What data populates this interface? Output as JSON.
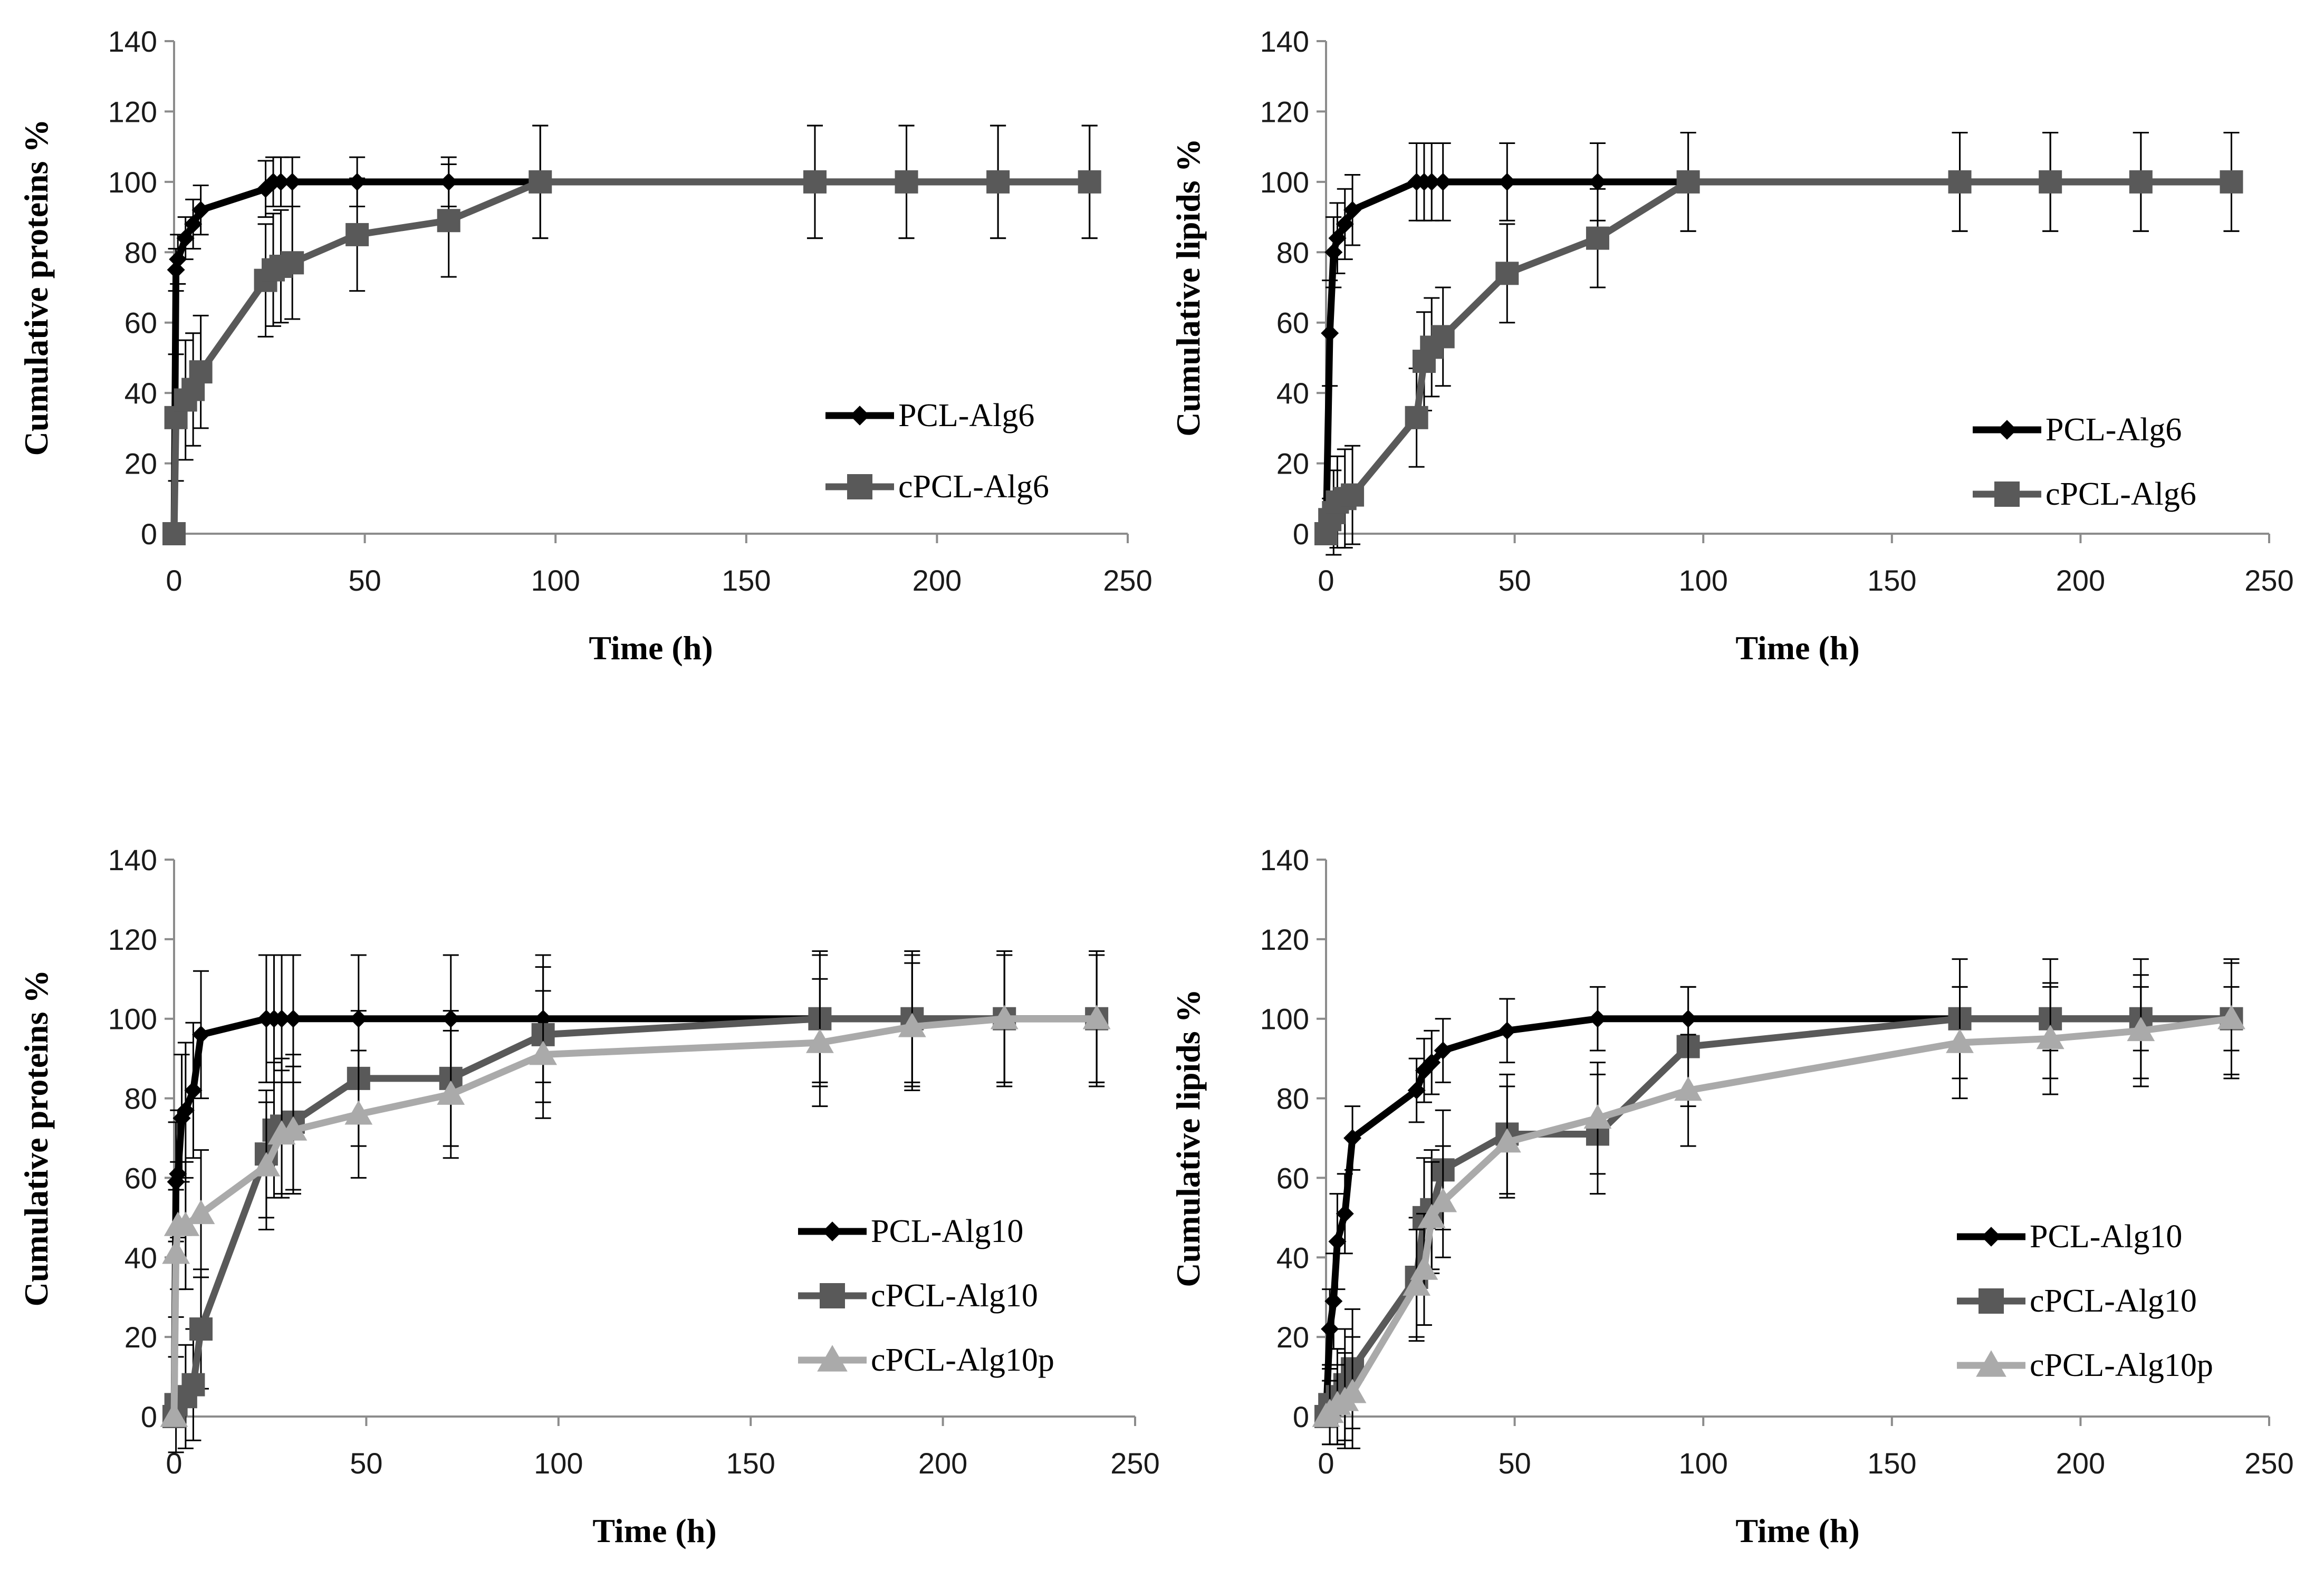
{
  "chart_data": [
    {
      "type": "line",
      "xlabel": "Time (h)",
      "ylabel": "Cumulative proteins %",
      "xlim": [
        0,
        250
      ],
      "ylim": [
        0,
        140
      ],
      "xticks": [
        0,
        50,
        100,
        150,
        200,
        250
      ],
      "yticks": [
        0,
        20,
        40,
        60,
        80,
        100,
        120,
        140
      ],
      "series": [
        {
          "name": "PCL-Alg6",
          "color": "#000000",
          "marker": "diamond",
          "x": [
            0,
            0.5,
            1,
            3,
            5,
            7,
            24,
            26,
            28,
            31,
            48,
            72,
            96,
            168,
            192,
            216,
            240
          ],
          "y": [
            0,
            75,
            78,
            84,
            88,
            92,
            98,
            100,
            100,
            100,
            100,
            100,
            100,
            100,
            100,
            100,
            100
          ],
          "err": [
            0,
            6,
            7,
            6,
            7,
            7,
            8,
            7,
            7,
            7,
            7,
            7,
            16,
            16,
            16,
            16,
            16
          ]
        },
        {
          "name": "cPCL-Alg6",
          "color": "#595959",
          "marker": "square",
          "x": [
            0,
            0.5,
            3,
            5,
            7,
            24,
            26,
            28,
            31,
            48,
            72,
            96,
            168,
            192,
            216,
            240
          ],
          "y": [
            0,
            33,
            38,
            41,
            46,
            72,
            75,
            76,
            77,
            85,
            89,
            100,
            100,
            100,
            100,
            100
          ],
          "err": [
            0,
            18,
            17,
            16,
            16,
            16,
            16,
            16,
            16,
            16,
            16,
            16,
            16,
            16,
            16,
            16
          ]
        }
      ]
    },
    {
      "type": "line",
      "xlabel": "Time (h)",
      "ylabel": "Cumulative lipids %",
      "xlim": [
        0,
        250
      ],
      "ylim": [
        0,
        140
      ],
      "xticks": [
        0,
        50,
        100,
        150,
        200,
        250
      ],
      "yticks": [
        0,
        20,
        40,
        60,
        80,
        100,
        120,
        140
      ],
      "series": [
        {
          "name": "PCL-Alg6",
          "color": "#000000",
          "marker": "diamond",
          "x": [
            0,
            1,
            2,
            3,
            5,
            7,
            24,
            26,
            28,
            31,
            48,
            72,
            96,
            168,
            192,
            216,
            240
          ],
          "y": [
            0,
            57,
            80,
            84,
            88,
            92,
            100,
            100,
            100,
            100,
            100,
            100,
            100,
            100,
            100,
            100,
            100
          ],
          "err": [
            0,
            15,
            10,
            10,
            10,
            10,
            11,
            11,
            11,
            11,
            11,
            11,
            14,
            14,
            14,
            14,
            14
          ]
        },
        {
          "name": "cPCL-Alg6",
          "color": "#595959",
          "marker": "square",
          "x": [
            0,
            1,
            2,
            3,
            5,
            7,
            24,
            26,
            28,
            31,
            48,
            72,
            96,
            168,
            192,
            216,
            240
          ],
          "y": [
            0,
            4,
            6,
            9,
            10,
            11,
            33,
            49,
            53,
            56,
            74,
            84,
            100,
            100,
            100,
            100,
            100
          ],
          "err": [
            0,
            6,
            12,
            13,
            14,
            14,
            14,
            14,
            14,
            14,
            14,
            14,
            14,
            14,
            14,
            14,
            14
          ]
        }
      ]
    },
    {
      "type": "line",
      "xlabel": "Time (h)",
      "ylabel": "Cumulative proteins %",
      "xlim": [
        0,
        250
      ],
      "ylim": [
        0,
        140
      ],
      "xticks": [
        0,
        50,
        100,
        150,
        200,
        250
      ],
      "yticks": [
        0,
        20,
        40,
        60,
        80,
        100,
        120,
        140
      ],
      "series": [
        {
          "name": "PCL-Alg10",
          "color": "#000000",
          "marker": "diamond",
          "x": [
            0,
            0.5,
            1,
            2,
            3,
            5,
            7,
            24,
            26,
            28,
            31,
            48,
            72,
            96,
            168,
            192,
            216,
            240
          ],
          "y": [
            0,
            59,
            61,
            75,
            77,
            82,
            96,
            100,
            100,
            100,
            100,
            100,
            100,
            100,
            100,
            100,
            100,
            100
          ],
          "err": [
            0,
            15,
            16,
            16,
            17,
            17,
            16,
            16,
            16,
            16,
            16,
            16,
            16,
            16,
            16,
            16,
            16,
            16
          ]
        },
        {
          "name": "cPCL-Alg10",
          "color": "#595959",
          "marker": "square",
          "x": [
            0,
            0.5,
            3,
            5,
            7,
            24,
            26,
            28,
            31,
            48,
            72,
            96,
            168,
            192,
            216,
            240
          ],
          "y": [
            0,
            3,
            5,
            8,
            22,
            66,
            72,
            73,
            74,
            85,
            85,
            96,
            100,
            100,
            100,
            100
          ],
          "err": [
            0,
            12,
            13,
            14,
            15,
            16,
            17,
            17,
            17,
            17,
            17,
            17,
            17,
            17,
            17,
            17
          ]
        },
        {
          "name": "cPCL-Alg10p",
          "color": "#aaaaaa",
          "marker": "triangle",
          "x": [
            0,
            0.5,
            1,
            3,
            7,
            24,
            28,
            31,
            48,
            72,
            96,
            168,
            192,
            216,
            240
          ],
          "y": [
            0,
            41,
            48,
            48,
            51,
            63,
            71,
            72,
            76,
            81,
            91,
            94,
            98,
            100,
            100
          ],
          "err": [
            0,
            16,
            16,
            16,
            16,
            16,
            16,
            16,
            16,
            16,
            16,
            16,
            16,
            16,
            16
          ]
        }
      ]
    },
    {
      "type": "line",
      "xlabel": "Time (h)",
      "ylabel": "Cumulative lipids %",
      "xlim": [
        0,
        250
      ],
      "ylim": [
        0,
        140
      ],
      "xticks": [
        0,
        50,
        100,
        150,
        200,
        250
      ],
      "yticks": [
        0,
        20,
        40,
        60,
        80,
        100,
        120,
        140
      ],
      "series": [
        {
          "name": "PCL-Alg10",
          "color": "#000000",
          "marker": "diamond",
          "x": [
            0,
            1,
            2,
            3,
            5,
            7,
            24,
            26,
            28,
            31,
            48,
            72,
            96,
            168,
            192,
            216,
            240
          ],
          "y": [
            0,
            22,
            29,
            44,
            51,
            70,
            82,
            87,
            89,
            92,
            97,
            100,
            100,
            100,
            100,
            100,
            100
          ],
          "err": [
            0,
            10,
            12,
            12,
            10,
            8,
            8,
            8,
            8,
            8,
            8,
            8,
            8,
            8,
            8,
            8,
            8
          ]
        },
        {
          "name": "cPCL-Alg10",
          "color": "#595959",
          "marker": "square",
          "x": [
            0,
            1,
            3,
            5,
            7,
            24,
            26,
            28,
            31,
            48,
            72,
            96,
            168,
            192,
            216,
            240
          ],
          "y": [
            0,
            3,
            5,
            8,
            12,
            35,
            50,
            52,
            62,
            71,
            71,
            93,
            100,
            100,
            100,
            100
          ],
          "err": [
            0,
            10,
            12,
            14,
            15,
            15,
            15,
            15,
            15,
            15,
            15,
            15,
            15,
            15,
            15,
            15
          ]
        },
        {
          "name": "cPCL-Alg10p",
          "color": "#aaaaaa",
          "marker": "triangle",
          "x": [
            0,
            1,
            3,
            5,
            7,
            24,
            26,
            28,
            31,
            48,
            72,
            96,
            168,
            192,
            216,
            240
          ],
          "y": [
            0,
            1,
            3,
            4,
            6,
            33,
            37,
            50,
            54,
            69,
            75,
            82,
            94,
            95,
            97,
            100
          ],
          "err": [
            0,
            8,
            10,
            12,
            14,
            14,
            14,
            14,
            14,
            14,
            14,
            14,
            14,
            14,
            14,
            14
          ]
        }
      ]
    }
  ]
}
